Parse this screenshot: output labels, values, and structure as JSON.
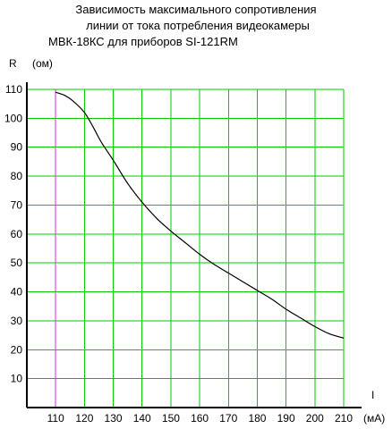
{
  "chart_data": {
    "type": "line",
    "title_lines": [
      "Зависимость максимального сопротивления",
      "линии от тока потребления видеокамеры",
      "МВК-18КС для приборов SI-121RM"
    ],
    "ylabel": "R",
    "yunit": "(ом)",
    "xlabel": "I",
    "xunit": "(мА)",
    "xlim": [
      100,
      210
    ],
    "ylim": [
      0,
      110
    ],
    "x_ticks": [
      110,
      120,
      130,
      140,
      150,
      160,
      170,
      180,
      190,
      200,
      210
    ],
    "y_ticks": [
      10,
      20,
      30,
      40,
      50,
      60,
      70,
      80,
      90,
      100,
      110
    ],
    "grid": true,
    "grid_color": "#00cc00",
    "axis_color": "#000000",
    "guide_color": "#cc33cc",
    "line_color": "#000000",
    "guide_lines": {
      "x": 110,
      "y": 10
    },
    "series": [
      {
        "x": [
          110,
          113,
          116,
          120,
          123,
          126,
          130,
          135,
          140,
          145,
          150,
          155,
          160,
          165,
          170,
          175,
          180,
          185,
          190,
          195,
          200,
          205,
          210
        ],
        "y": [
          109,
          108,
          106,
          102,
          97,
          91.5,
          85.5,
          77.5,
          71,
          65.5,
          61,
          57,
          53,
          49.5,
          46.5,
          43.5,
          40.5,
          37.5,
          34,
          31,
          28,
          25.5,
          24
        ]
      }
    ]
  }
}
